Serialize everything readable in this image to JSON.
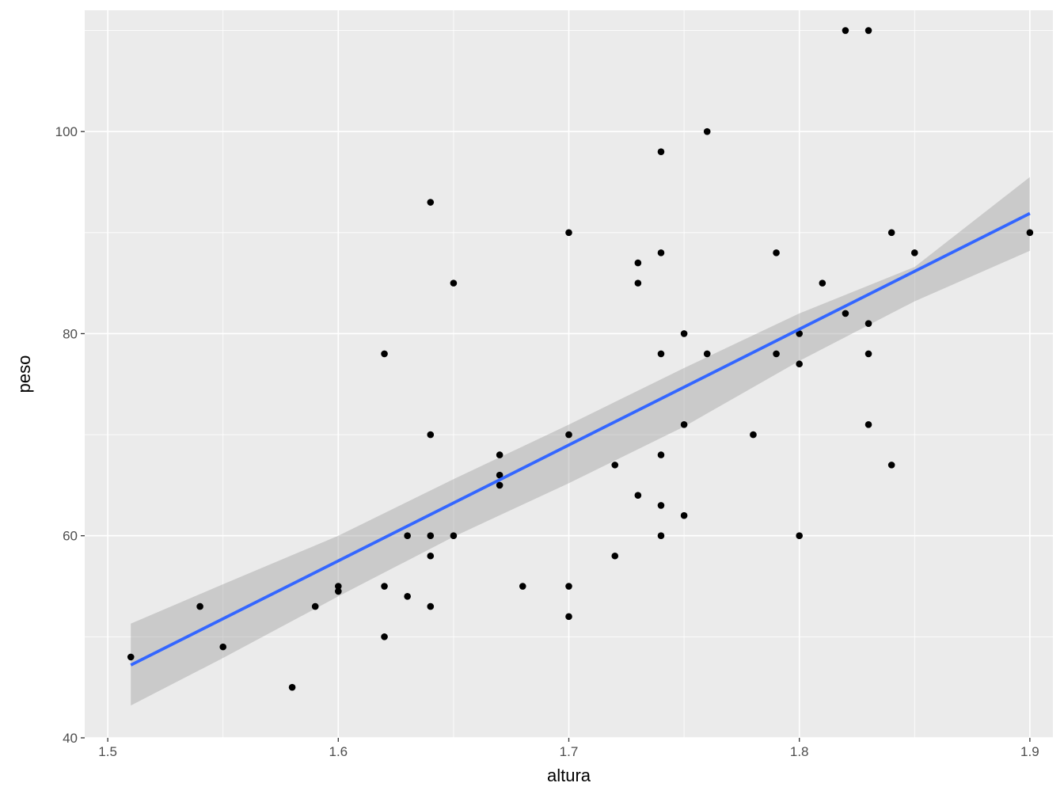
{
  "chart_data": {
    "type": "scatter",
    "xlabel": "altura",
    "ylabel": "peso",
    "xlim": [
      1.49,
      1.91
    ],
    "ylim": [
      40,
      112
    ],
    "x_ticks": [
      1.5,
      1.6,
      1.7,
      1.8,
      1.9
    ],
    "x_tick_labels": [
      "1.5",
      "1.6",
      "1.7",
      "1.8",
      "1.9"
    ],
    "y_ticks": [
      40,
      60,
      80,
      100
    ],
    "y_tick_labels": [
      "40",
      "60",
      "80",
      "100"
    ],
    "grid": true,
    "legend": "none",
    "points": [
      [
        1.51,
        48
      ],
      [
        1.54,
        53
      ],
      [
        1.55,
        49
      ],
      [
        1.58,
        45
      ],
      [
        1.59,
        53
      ],
      [
        1.6,
        55
      ],
      [
        1.6,
        54.5
      ],
      [
        1.62,
        78
      ],
      [
        1.62,
        55
      ],
      [
        1.62,
        50
      ],
      [
        1.63,
        60
      ],
      [
        1.63,
        54
      ],
      [
        1.64,
        93
      ],
      [
        1.64,
        70
      ],
      [
        1.64,
        60
      ],
      [
        1.64,
        58
      ],
      [
        1.64,
        53
      ],
      [
        1.65,
        85
      ],
      [
        1.65,
        60
      ],
      [
        1.67,
        68
      ],
      [
        1.67,
        66
      ],
      [
        1.67,
        65
      ],
      [
        1.68,
        55
      ],
      [
        1.7,
        90
      ],
      [
        1.7,
        70
      ],
      [
        1.7,
        55
      ],
      [
        1.7,
        52
      ],
      [
        1.72,
        67
      ],
      [
        1.72,
        58
      ],
      [
        1.73,
        87
      ],
      [
        1.73,
        85
      ],
      [
        1.73,
        64
      ],
      [
        1.74,
        98
      ],
      [
        1.74,
        88
      ],
      [
        1.74,
        78
      ],
      [
        1.74,
        68
      ],
      [
        1.74,
        63
      ],
      [
        1.74,
        60
      ],
      [
        1.75,
        80
      ],
      [
        1.75,
        71
      ],
      [
        1.75,
        62
      ],
      [
        1.76,
        100
      ],
      [
        1.76,
        78
      ],
      [
        1.78,
        70
      ],
      [
        1.79,
        88
      ],
      [
        1.79,
        78
      ],
      [
        1.8,
        80
      ],
      [
        1.8,
        77
      ],
      [
        1.8,
        60
      ],
      [
        1.81,
        85
      ],
      [
        1.82,
        110
      ],
      [
        1.82,
        82
      ],
      [
        1.83,
        110
      ],
      [
        1.83,
        81
      ],
      [
        1.83,
        78
      ],
      [
        1.83,
        71
      ],
      [
        1.84,
        90
      ],
      [
        1.84,
        67
      ],
      [
        1.85,
        88
      ],
      [
        1.9,
        90
      ]
    ],
    "smooth": {
      "method": "lm",
      "x_range": [
        1.51,
        1.9
      ],
      "fit": [
        47.2,
        91.9
      ],
      "lower": [
        43.2,
        88.2
      ],
      "upper": [
        51.3,
        95.5
      ],
      "band_x": [
        1.51,
        1.55,
        1.6,
        1.65,
        1.7,
        1.75,
        1.8,
        1.85,
        1.9
      ],
      "band_lower": [
        43.2,
        47.9,
        54.0,
        59.9,
        65.2,
        70.8,
        77.3,
        83.2,
        88.2
      ],
      "band_upper": [
        51.3,
        55.2,
        60.0,
        65.6,
        71.0,
        76.6,
        82.0,
        86.6,
        95.5
      ]
    },
    "colors": {
      "panel": "#ebebeb",
      "grid_major": "#ffffff",
      "points": "#000000",
      "line": "#3366ff",
      "band": "#999999"
    }
  }
}
